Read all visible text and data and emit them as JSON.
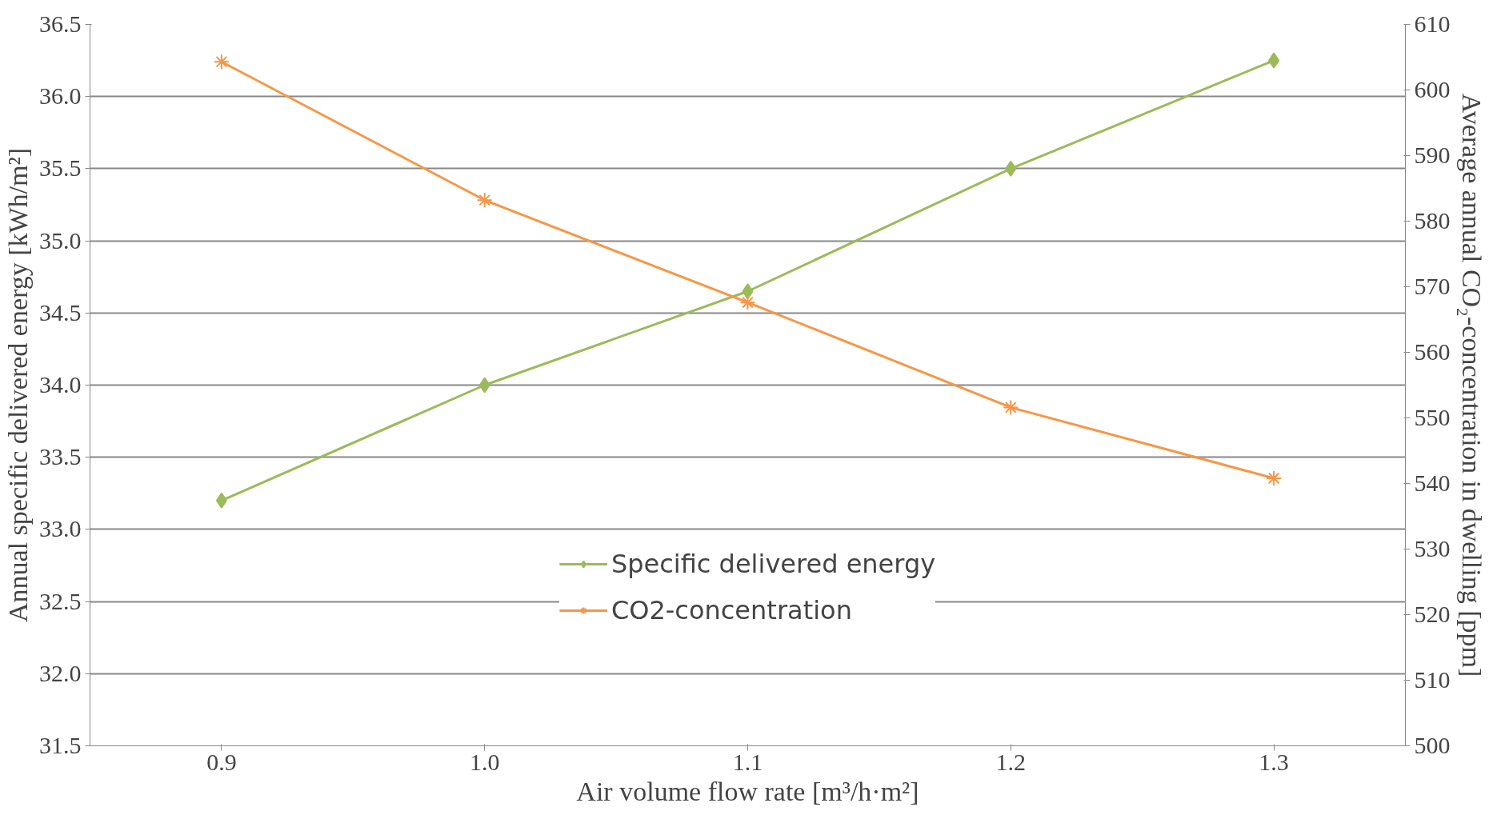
{
  "chart_data": {
    "type": "line",
    "categories": [
      "0.9",
      "1.0",
      "1.1",
      "1.2",
      "1.3"
    ],
    "xlabel": "Air volume flow rate [m³/h·m²]",
    "ylabel": "Annual specific delivered energy [kWh/m²]",
    "y2label": "Average annual CO₂-concentration in dwelling [ppm]",
    "ylim": [
      31.5,
      36.5
    ],
    "yticks": [
      {
        "value": 31.5,
        "label": "31.5"
      },
      {
        "value": 32,
        "label": "32.0"
      },
      {
        "value": 32.5,
        "label": "32.5"
      },
      {
        "value": 33,
        "label": "33.0"
      },
      {
        "value": 33.5,
        "label": "33.5"
      },
      {
        "value": 34,
        "label": "34.0"
      },
      {
        "value": 34.5,
        "label": "34.5"
      },
      {
        "value": 35,
        "label": "35.0"
      },
      {
        "value": 35.5,
        "label": "35.5"
      },
      {
        "value": 36,
        "label": "36.0"
      },
      {
        "value": 36.5,
        "label": "36.5"
      }
    ],
    "y2lim": [
      500,
      610
    ],
    "y2ticks": [
      500,
      510,
      520,
      530,
      540,
      550,
      560,
      570,
      580,
      590,
      600,
      610
    ],
    "grid": "y",
    "legend": "bottom",
    "series": [
      {
        "name": "Specific delivered energy",
        "color": "#9bbb59",
        "values": [
          33.2,
          34.0,
          34.65,
          35.5,
          36.25
        ],
        "marker": "diamond"
      },
      {
        "name": "CO2-concentration",
        "color": "#f79646",
        "values": [
          604.3,
          583.2,
          567.6,
          551.6,
          540.8
        ],
        "axis": "y2",
        "marker": "cross"
      }
    ]
  }
}
